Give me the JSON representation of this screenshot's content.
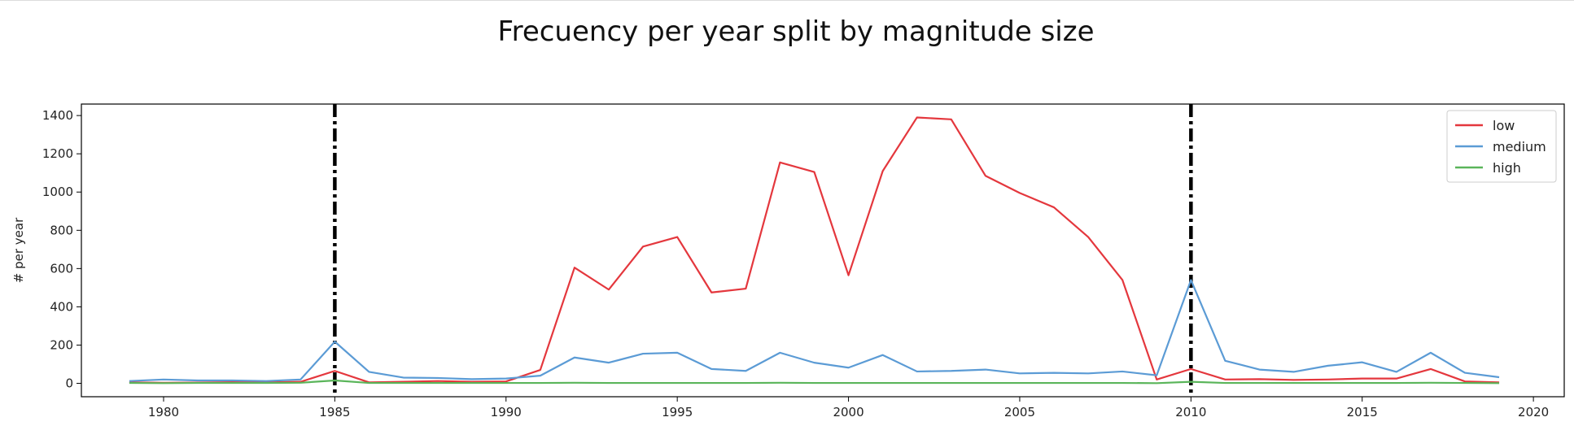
{
  "chart_data": {
    "type": "line",
    "title": "Frecuency per year split by magnitude size",
    "xlabel": "",
    "ylabel": "# per year",
    "xlim": [
      1977.6,
      2020.9
    ],
    "ylim": [
      -70,
      1460
    ],
    "xticks": [
      1980,
      1985,
      1990,
      1995,
      2000,
      2005,
      2010,
      2015,
      2020
    ],
    "yticks": [
      0,
      200,
      400,
      600,
      800,
      1000,
      1200,
      1400
    ],
    "grid": false,
    "legend_position": "top-right",
    "x": [
      1979,
      1980,
      1981,
      1982,
      1983,
      1984,
      1985,
      1986,
      1987,
      1988,
      1989,
      1990,
      1991,
      1992,
      1993,
      1994,
      1995,
      1996,
      1997,
      1998,
      1999,
      2000,
      2001,
      2002,
      2003,
      2004,
      2005,
      2006,
      2007,
      2008,
      2009,
      2010,
      2011,
      2012,
      2013,
      2014,
      2015,
      2016,
      2017,
      2018,
      2019
    ],
    "series": [
      {
        "name": "low",
        "color": "#e4373d",
        "values": [
          5,
          3,
          4,
          6,
          5,
          8,
          65,
          5,
          8,
          12,
          8,
          10,
          70,
          605,
          490,
          715,
          765,
          475,
          495,
          1155,
          1105,
          565,
          1110,
          1390,
          1380,
          1085,
          995,
          920,
          765,
          540,
          20,
          75,
          20,
          22,
          18,
          20,
          25,
          25,
          75,
          10,
          5
        ]
      },
      {
        "name": "medium",
        "color": "#5b9bd5",
        "values": [
          12,
          20,
          15,
          15,
          12,
          20,
          218,
          60,
          30,
          28,
          22,
          25,
          40,
          135,
          108,
          155,
          160,
          75,
          65,
          160,
          108,
          82,
          148,
          62,
          65,
          72,
          52,
          55,
          52,
          62,
          42,
          540,
          118,
          72,
          60,
          92,
          110,
          60,
          160,
          55,
          32
        ]
      },
      {
        "name": "high",
        "color": "#5ab55a",
        "values": [
          2,
          1,
          2,
          2,
          2,
          3,
          15,
          2,
          2,
          2,
          2,
          2,
          2,
          3,
          2,
          2,
          2,
          2,
          2,
          3,
          2,
          2,
          2,
          2,
          2,
          2,
          2,
          2,
          2,
          2,
          1,
          8,
          2,
          2,
          2,
          2,
          2,
          2,
          3,
          2,
          1
        ]
      }
    ],
    "vlines": [
      {
        "x": 1985,
        "color": "#000000",
        "style": "dash-dot"
      },
      {
        "x": 2010,
        "color": "#000000",
        "style": "dash-dot"
      }
    ]
  }
}
